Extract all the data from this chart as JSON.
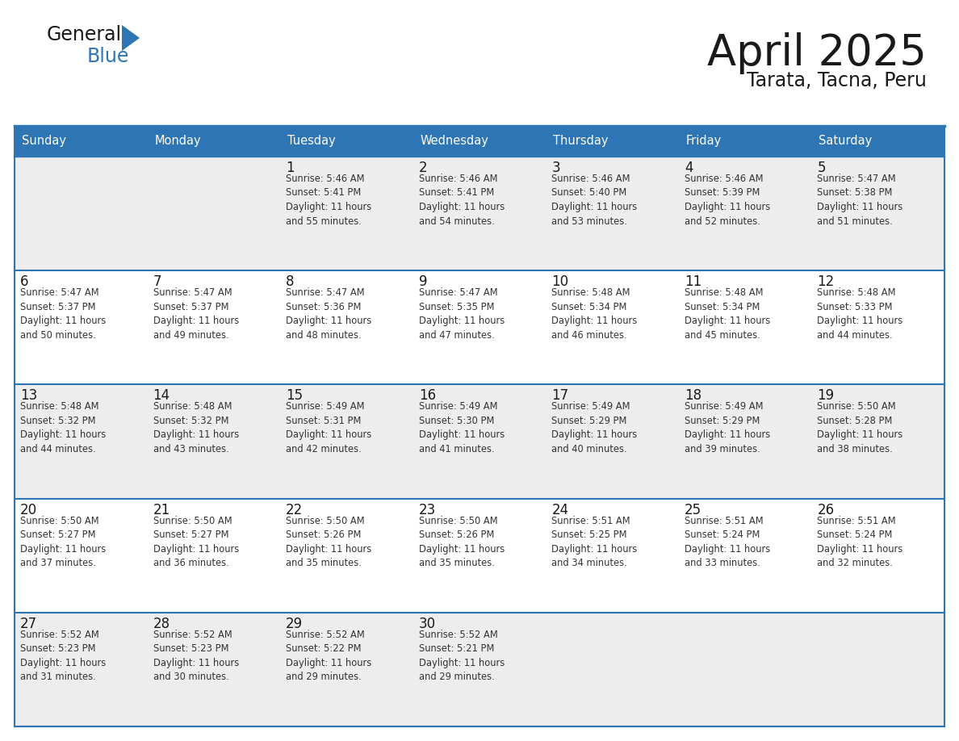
{
  "title": "April 2025",
  "subtitle": "Tarata, Tacna, Peru",
  "header_bg": "#2E75B6",
  "header_text": "#FFFFFF",
  "row_bg_1": "#EDEDED",
  "row_bg_2": "#FFFFFF",
  "cell_border": "#2E75B6",
  "day_headers": [
    "Sunday",
    "Monday",
    "Tuesday",
    "Wednesday",
    "Thursday",
    "Friday",
    "Saturday"
  ],
  "title_color": "#1a1a1a",
  "subtitle_color": "#1a1a1a",
  "day_number_color": "#1a1a1a",
  "cell_text_color": "#333333",
  "calendar_data": [
    [
      "",
      "",
      "1\nSunrise: 5:46 AM\nSunset: 5:41 PM\nDaylight: 11 hours\nand 55 minutes.",
      "2\nSunrise: 5:46 AM\nSunset: 5:41 PM\nDaylight: 11 hours\nand 54 minutes.",
      "3\nSunrise: 5:46 AM\nSunset: 5:40 PM\nDaylight: 11 hours\nand 53 minutes.",
      "4\nSunrise: 5:46 AM\nSunset: 5:39 PM\nDaylight: 11 hours\nand 52 minutes.",
      "5\nSunrise: 5:47 AM\nSunset: 5:38 PM\nDaylight: 11 hours\nand 51 minutes."
    ],
    [
      "6\nSunrise: 5:47 AM\nSunset: 5:37 PM\nDaylight: 11 hours\nand 50 minutes.",
      "7\nSunrise: 5:47 AM\nSunset: 5:37 PM\nDaylight: 11 hours\nand 49 minutes.",
      "8\nSunrise: 5:47 AM\nSunset: 5:36 PM\nDaylight: 11 hours\nand 48 minutes.",
      "9\nSunrise: 5:47 AM\nSunset: 5:35 PM\nDaylight: 11 hours\nand 47 minutes.",
      "10\nSunrise: 5:48 AM\nSunset: 5:34 PM\nDaylight: 11 hours\nand 46 minutes.",
      "11\nSunrise: 5:48 AM\nSunset: 5:34 PM\nDaylight: 11 hours\nand 45 minutes.",
      "12\nSunrise: 5:48 AM\nSunset: 5:33 PM\nDaylight: 11 hours\nand 44 minutes."
    ],
    [
      "13\nSunrise: 5:48 AM\nSunset: 5:32 PM\nDaylight: 11 hours\nand 44 minutes.",
      "14\nSunrise: 5:48 AM\nSunset: 5:32 PM\nDaylight: 11 hours\nand 43 minutes.",
      "15\nSunrise: 5:49 AM\nSunset: 5:31 PM\nDaylight: 11 hours\nand 42 minutes.",
      "16\nSunrise: 5:49 AM\nSunset: 5:30 PM\nDaylight: 11 hours\nand 41 minutes.",
      "17\nSunrise: 5:49 AM\nSunset: 5:29 PM\nDaylight: 11 hours\nand 40 minutes.",
      "18\nSunrise: 5:49 AM\nSunset: 5:29 PM\nDaylight: 11 hours\nand 39 minutes.",
      "19\nSunrise: 5:50 AM\nSunset: 5:28 PM\nDaylight: 11 hours\nand 38 minutes."
    ],
    [
      "20\nSunrise: 5:50 AM\nSunset: 5:27 PM\nDaylight: 11 hours\nand 37 minutes.",
      "21\nSunrise: 5:50 AM\nSunset: 5:27 PM\nDaylight: 11 hours\nand 36 minutes.",
      "22\nSunrise: 5:50 AM\nSunset: 5:26 PM\nDaylight: 11 hours\nand 35 minutes.",
      "23\nSunrise: 5:50 AM\nSunset: 5:26 PM\nDaylight: 11 hours\nand 35 minutes.",
      "24\nSunrise: 5:51 AM\nSunset: 5:25 PM\nDaylight: 11 hours\nand 34 minutes.",
      "25\nSunrise: 5:51 AM\nSunset: 5:24 PM\nDaylight: 11 hours\nand 33 minutes.",
      "26\nSunrise: 5:51 AM\nSunset: 5:24 PM\nDaylight: 11 hours\nand 32 minutes."
    ],
    [
      "27\nSunrise: 5:52 AM\nSunset: 5:23 PM\nDaylight: 11 hours\nand 31 minutes.",
      "28\nSunrise: 5:52 AM\nSunset: 5:23 PM\nDaylight: 11 hours\nand 30 minutes.",
      "29\nSunrise: 5:52 AM\nSunset: 5:22 PM\nDaylight: 11 hours\nand 29 minutes.",
      "30\nSunrise: 5:52 AM\nSunset: 5:21 PM\nDaylight: 11 hours\nand 29 minutes.",
      "",
      "",
      ""
    ]
  ]
}
